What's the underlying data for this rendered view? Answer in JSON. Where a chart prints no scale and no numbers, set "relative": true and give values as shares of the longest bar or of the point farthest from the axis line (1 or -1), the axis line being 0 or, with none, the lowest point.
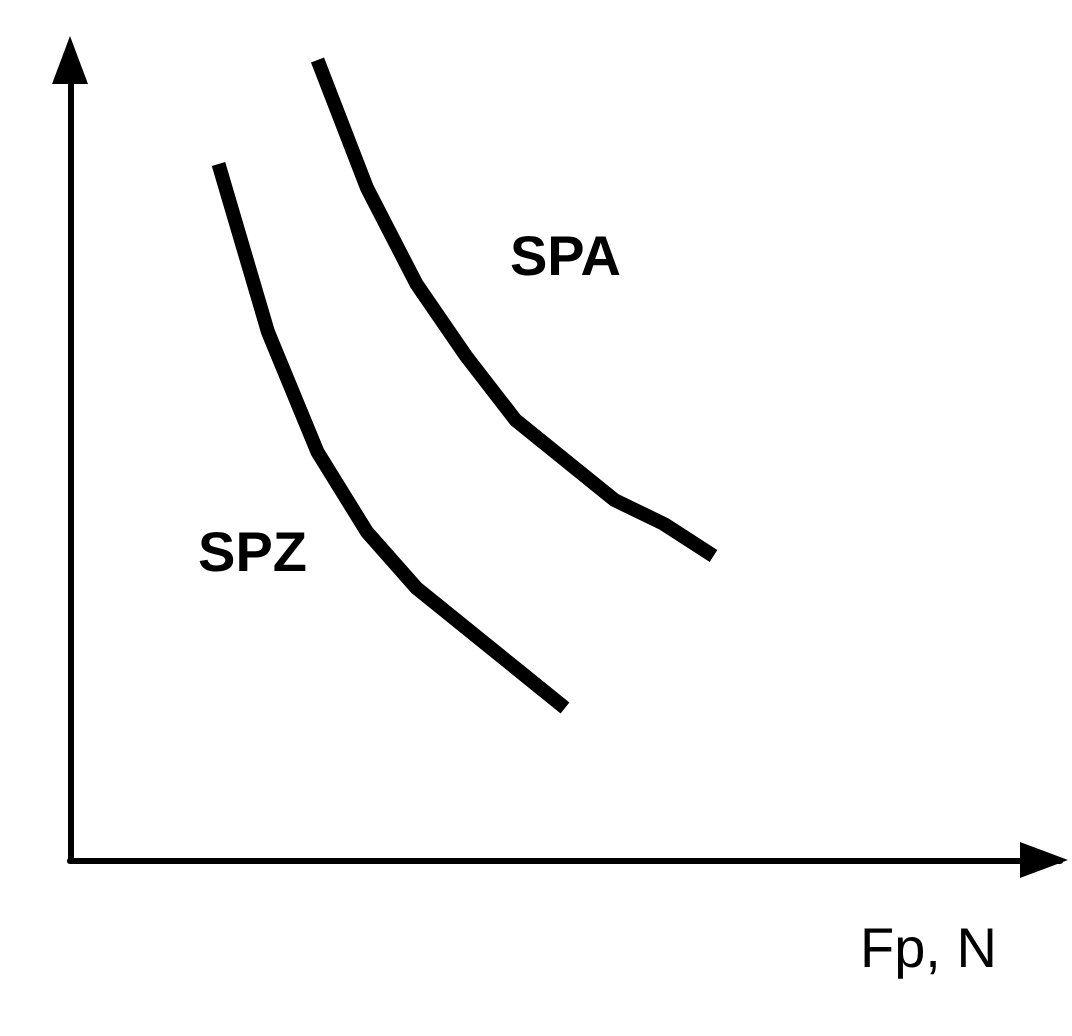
{
  "chart_data": {
    "type": "line",
    "relative": true,
    "xlabel": "Fp, N",
    "categories": [
      null,
      null,
      null,
      null,
      null,
      null,
      null,
      null,
      null,
      null,
      null,
      null,
      null,
      null,
      null,
      null,
      null,
      null,
      null,
      null,
      null
    ],
    "series": [
      {
        "name": "SPA",
        "color": "#000000",
        "values": [
          null,
          null,
          null,
          null,
          null,
          1,
          0.84,
          0.72,
          0.63,
          0.55,
          0.5,
          0.45,
          0.42,
          0.38,
          null,
          null,
          null,
          null,
          null,
          null,
          null
        ]
      },
      {
        "name": "SPZ",
        "color": "#000000",
        "values": [
          null,
          null,
          null,
          0.87,
          0.66,
          0.51,
          0.41,
          0.34,
          0.29,
          0.24,
          0.19,
          null,
          null,
          null,
          null,
          null,
          null,
          null,
          null,
          null,
          null
        ]
      }
    ],
    "marker": "none",
    "line_style": "solid",
    "grid": false,
    "legend": false
  }
}
